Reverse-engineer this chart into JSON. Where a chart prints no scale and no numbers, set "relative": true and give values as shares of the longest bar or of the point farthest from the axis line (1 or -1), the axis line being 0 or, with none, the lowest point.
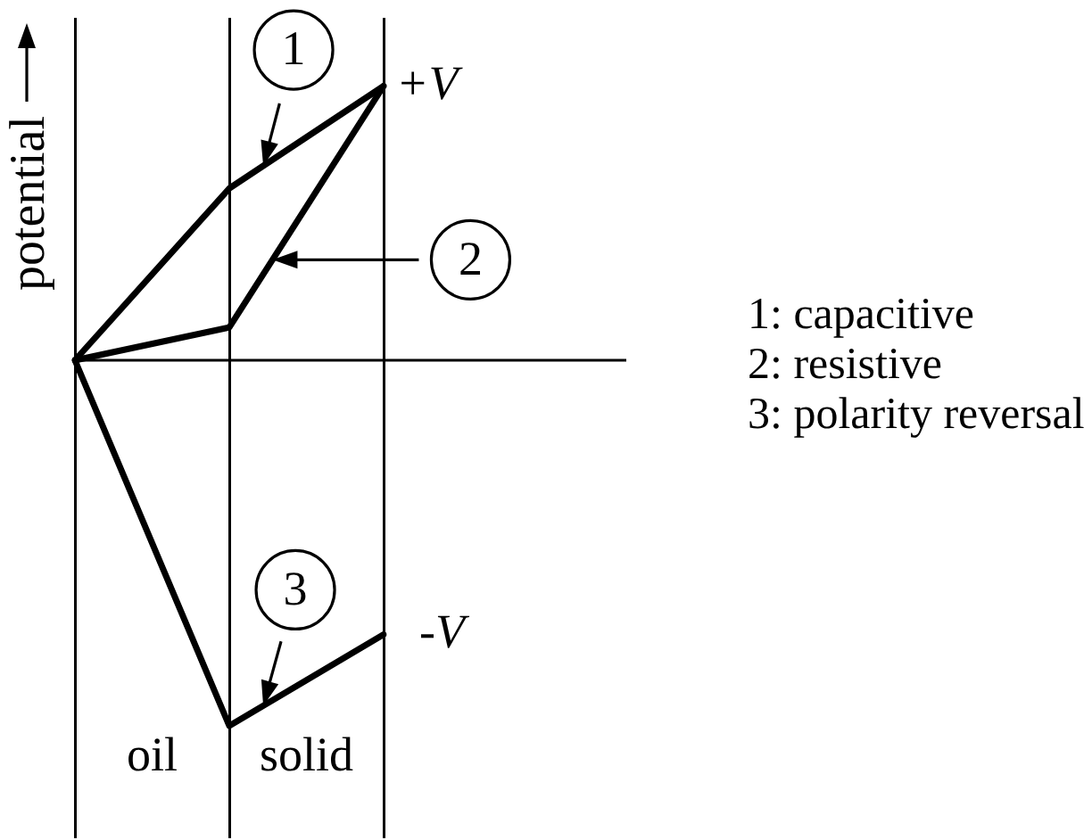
{
  "chart_data": {
    "type": "line",
    "relative": true,
    "ylabel": "potential",
    "categories": [
      null,
      null,
      null
    ],
    "series": [
      {
        "name": "1: capacitive",
        "color": "#000000",
        "values": [
          0,
          0.47,
          0.75
        ]
      },
      {
        "name": "2: resistive",
        "color": "#000000",
        "values": [
          0,
          0.09,
          0.75
        ]
      },
      {
        "name": "3: polarity reversal",
        "color": "#000000",
        "values": [
          0,
          -1,
          -0.75
        ]
      }
    ],
    "annotations": [
      "oil",
      "solid",
      "+V",
      "-V",
      "1",
      "2",
      "3"
    ],
    "grid": "x",
    "tick_labels": false,
    "marker": "none",
    "legend": "right"
  }
}
